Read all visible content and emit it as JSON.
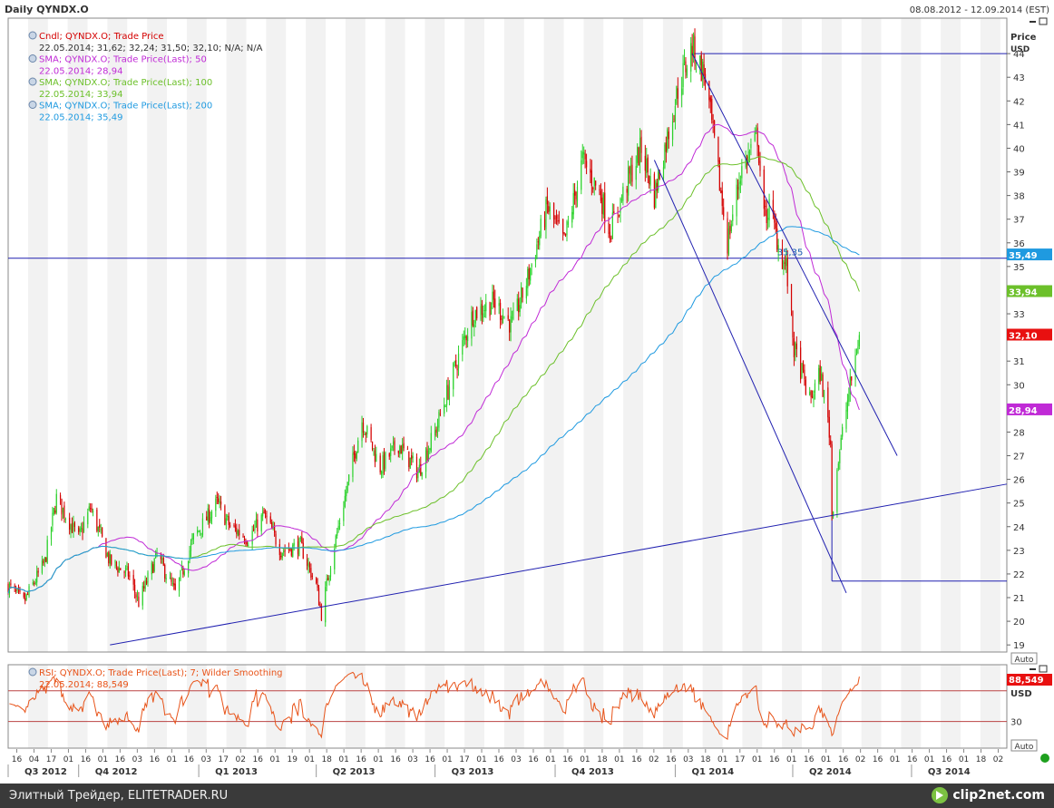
{
  "header": {
    "title": "Daily QYNDX.O",
    "date_range": "08.08.2012 - 12.09.2014 (EST)"
  },
  "price_axis": {
    "title": "Price",
    "currency": "USD",
    "auto_button": "Auto",
    "ticks": [
      "44",
      "43",
      "42",
      "41",
      "40",
      "39",
      "38",
      "37",
      "36",
      "35",
      "33",
      "31",
      "30",
      "28",
      "27",
      "26",
      "25",
      "24",
      "23",
      "22",
      "21",
      "20",
      "19"
    ]
  },
  "legend": [
    {
      "name": "Cndl; QYNDX.O; Trade Price",
      "values": "22.05.2014; 31,62; 32,24; 31,50; 32,10; N/A; N/A",
      "color": "#d40000",
      "value_color": "#333333"
    },
    {
      "name": "SMA; QYNDX.O; Trade Price(Last);  50",
      "values": "22.05.2014; 28,94",
      "color": "#c02ad6",
      "value_color": "#c02ad6"
    },
    {
      "name": "SMA; QYNDX.O; Trade Price(Last);  100",
      "values": "22.05.2014; 33,94",
      "color": "#6cc02a",
      "value_color": "#6cc02a"
    },
    {
      "name": "SMA; QYNDX.O; Trade Price(Last);  200",
      "values": "22.05.2014; 35,49",
      "color": "#1f9ae0",
      "value_color": "#1f9ae0"
    }
  ],
  "badges": [
    {
      "text": "35,49",
      "color": "#1f9ae0",
      "value": 35.49
    },
    {
      "text": "33,94",
      "color": "#6cc02a",
      "value": 33.94
    },
    {
      "text": "32,10",
      "color": "#e81010",
      "value": 32.1
    },
    {
      "text": "28,94",
      "color": "#c02ad6",
      "value": 28.94
    }
  ],
  "annotation": {
    "text": "35,35",
    "value": 35.35
  },
  "rsi": {
    "legend_name": "RSI; QYNDX.O; Trade Price(Last);  7;  Wilder Smoothing",
    "legend_values": "22.05.2014; 88,549",
    "badge": "88,549",
    "currency": "USD",
    "tick": "30",
    "auto_button": "Auto",
    "upper_level": 70,
    "lower_level": 30,
    "last_value": 88.549
  },
  "time_axis": {
    "day_ticks": [
      "16",
      "04",
      "17",
      "01",
      "16",
      "01",
      "16",
      "03",
      "16",
      "01",
      "16",
      "03",
      "17",
      "02",
      "16",
      "01",
      "19",
      "01",
      "18",
      "01",
      "16",
      "01",
      "16",
      "03",
      "16",
      "01",
      "17",
      "01",
      "16",
      "03",
      "16",
      "01",
      "16",
      "01",
      "18",
      "01",
      "16",
      "02",
      "16",
      "03",
      "18",
      "01",
      "17",
      "01",
      "16",
      "01",
      "16",
      "01",
      "16",
      "02",
      "16",
      "01",
      "16",
      "01",
      "16",
      "01",
      "18",
      "02"
    ],
    "quarters": [
      "Q3 2012",
      "Q4 2012",
      "Q1 2013",
      "Q2 2013",
      "Q3 2013",
      "Q4 2013",
      "Q1 2014",
      "Q2 2014",
      "Q3 2014"
    ]
  },
  "chart_data": {
    "type": "candlestick",
    "symbol": "QYNDX.O",
    "last_candle": {
      "date": "22.05.2014",
      "open": 31.62,
      "high": 32.24,
      "low": 31.5,
      "close": 32.1
    },
    "anchors": [
      [
        "2012-08-08",
        21.5
      ],
      [
        "2012-08-20",
        20.8
      ],
      [
        "2012-09-05",
        22.5
      ],
      [
        "2012-09-14",
        25.2
      ],
      [
        "2012-10-01",
        23.5
      ],
      [
        "2012-10-10",
        24.8
      ],
      [
        "2012-10-25",
        22.5
      ],
      [
        "2012-11-08",
        22.0
      ],
      [
        "2012-11-16",
        20.8
      ],
      [
        "2012-11-30",
        22.8
      ],
      [
        "2012-12-14",
        21.2
      ],
      [
        "2012-12-28",
        23.5
      ],
      [
        "2013-01-15",
        25.0
      ],
      [
        "2013-01-25",
        24.0
      ],
      [
        "2013-02-08",
        23.5
      ],
      [
        "2013-02-20",
        24.5
      ],
      [
        "2013-03-05",
        23.0
      ],
      [
        "2013-03-20",
        23.2
      ],
      [
        "2013-04-01",
        21.5
      ],
      [
        "2013-04-05",
        20.3
      ],
      [
        "2013-04-12",
        22.5
      ],
      [
        "2013-04-22",
        25.0
      ],
      [
        "2013-05-06",
        28.5
      ],
      [
        "2013-05-20",
        26.5
      ],
      [
        "2013-06-03",
        27.5
      ],
      [
        "2013-06-18",
        26.3
      ],
      [
        "2013-07-01",
        28.0
      ],
      [
        "2013-07-15",
        30.5
      ],
      [
        "2013-07-30",
        33.0
      ],
      [
        "2013-08-15",
        33.5
      ],
      [
        "2013-08-29",
        32.5
      ],
      [
        "2013-09-10",
        34.5
      ],
      [
        "2013-09-25",
        37.5
      ],
      [
        "2013-10-08",
        36.0
      ],
      [
        "2013-10-22",
        39.5
      ],
      [
        "2013-11-05",
        38.0
      ],
      [
        "2013-11-12",
        36.5
      ],
      [
        "2013-11-25",
        38.5
      ],
      [
        "2013-12-06",
        40.0
      ],
      [
        "2013-12-16",
        38.0
      ],
      [
        "2014-01-03",
        42.5
      ],
      [
        "2014-01-14",
        44.3
      ],
      [
        "2014-01-24",
        43.0
      ],
      [
        "2014-02-04",
        38.5
      ],
      [
        "2014-02-10",
        36.0
      ],
      [
        "2014-02-20",
        39.0
      ],
      [
        "2014-03-05",
        40.5
      ],
      [
        "2014-03-10",
        37.0
      ],
      [
        "2014-03-14",
        37.5
      ],
      [
        "2014-03-24",
        35.3
      ],
      [
        "2014-03-27",
        35.0
      ],
      [
        "2014-04-02",
        31.5
      ],
      [
        "2014-04-08",
        30.5
      ],
      [
        "2014-04-14",
        29.3
      ],
      [
        "2014-04-22",
        30.5
      ],
      [
        "2014-04-28",
        28.5
      ],
      [
        "2014-04-30",
        27.5
      ],
      [
        "2014-05-01",
        24.5
      ],
      [
        "2014-05-05",
        26.5
      ],
      [
        "2014-05-12",
        29.0
      ],
      [
        "2014-05-22",
        32.1
      ]
    ],
    "sma50_last": 28.94,
    "sma100_last": 33.94,
    "sma200_last": 35.49,
    "rsi7_last": 88.549,
    "trendlines": [
      {
        "from": [
          "2012-10-25",
          19.0
        ],
        "to": [
          "2014-09-12",
          25.8
        ]
      },
      {
        "from": [
          "2014-01-14",
          44.0
        ],
        "to": [
          "2014-06-20",
          27.0
        ]
      },
      {
        "from": [
          "2013-12-16",
          39.5
        ],
        "to": [
          "2014-05-12",
          21.2
        ]
      }
    ],
    "hlines": [
      {
        "from": "2014-01-14",
        "to": "2014-09-12",
        "price": 44.0
      },
      {
        "from": "2012-08-08",
        "to": "2014-09-12",
        "price": 35.35
      },
      {
        "from": "2014-05-01",
        "to": "2014-09-12",
        "price": 21.7
      }
    ],
    "ylim": [
      18.7,
      45.5
    ],
    "xlim": [
      "2012-08-08",
      "2014-09-12"
    ]
  },
  "footer": {
    "text": "Элитный Трейдер, ELITETRADER.RU",
    "brand": "clip2net.com"
  }
}
